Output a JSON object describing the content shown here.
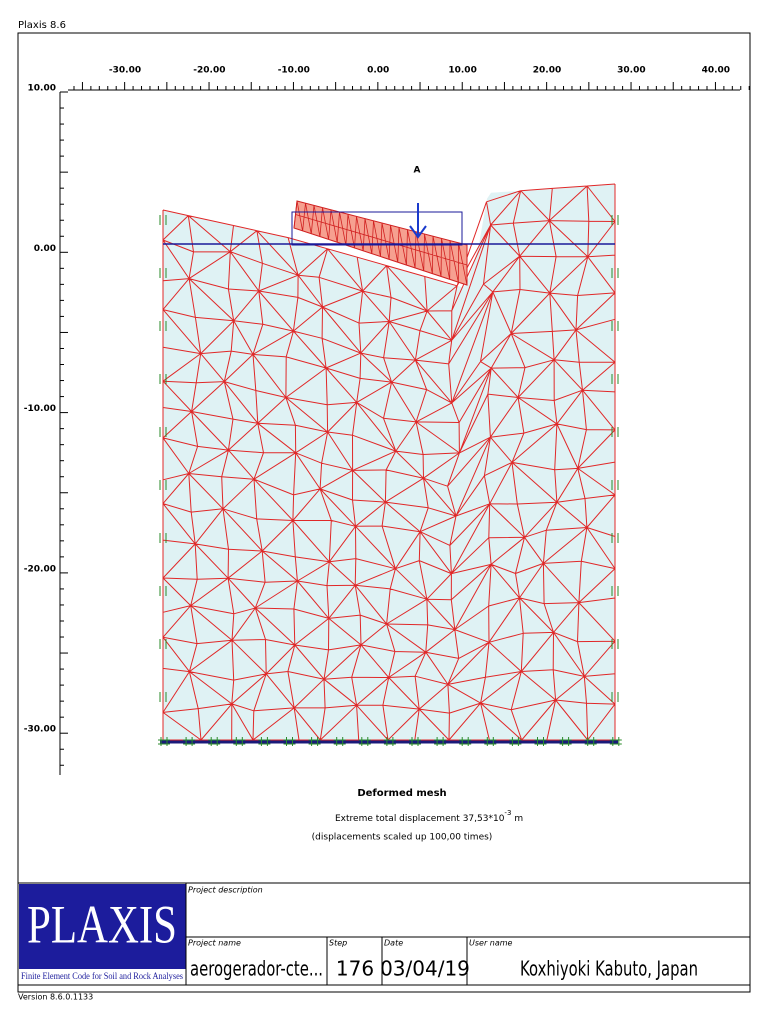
{
  "app_title": "Plaxis 8.6",
  "x_axis": {
    "labels": [
      "-30.00",
      "-20.00",
      "-10.00",
      "0.00",
      "10.00",
      "20.00",
      "30.00",
      "40.00"
    ]
  },
  "y_axis": {
    "labels": [
      "10.00",
      "0.00",
      "-10.00",
      "-20.00",
      "-30.00"
    ]
  },
  "point_label": "A",
  "plot_title": "Deformed mesh",
  "caption": {
    "line1": "Extreme total displacement 37,53*10",
    "exponent": "-3",
    "unit": "m",
    "line2": "(displacements scaled up 100,00 times)"
  },
  "logo": {
    "name": "PLAXIS",
    "tagline": "Finite Element Code for Soil and Rock Analyses"
  },
  "info": {
    "project_description_label": "Project description",
    "project_name_label": "Project name",
    "project_name": "aerogerador-cte...",
    "step_label": "Step",
    "step": 176,
    "date_label": "Date",
    "date": "03/04/19",
    "user_name_label": "User name",
    "user_name": "Koxhiyoki Kabuto, Japan"
  },
  "version": "Version 8.6.0.1133"
}
